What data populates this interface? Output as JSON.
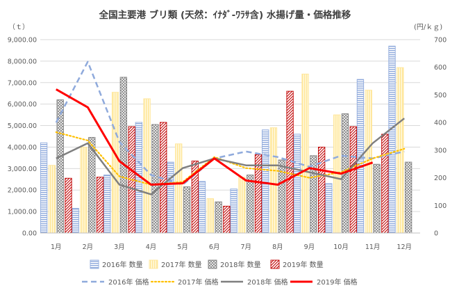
{
  "chart_data": {
    "type": "bar+line",
    "title": "全国主要港 ブリ類 (天然：ｲﾅﾀﾞ-ﾜﾗｻ含) 水揚げ量・価格推移",
    "y_left_unit": "（ｔ）",
    "y_right_unit": "(円/ｋｇ)",
    "categories": [
      "1月",
      "2月",
      "3月",
      "4月",
      "5月",
      "6月",
      "7月",
      "8月",
      "9月",
      "10月",
      "11月",
      "12月"
    ],
    "y_left": {
      "min": 0,
      "max": 9000,
      "step": 1000,
      "tick_labels": [
        "0.00",
        "1,000.00",
        "2,000.00",
        "3,000.00",
        "4,000.00",
        "5,000.00",
        "6,000.00",
        "7,000.00",
        "8,000.00",
        "9,000.00"
      ]
    },
    "y_right": {
      "min": 0,
      "max": 700,
      "step": 100,
      "tick_labels": [
        "0",
        "100",
        "200",
        "300",
        "400",
        "500",
        "600",
        "700"
      ]
    },
    "bar_series": [
      {
        "name": "2016年 数量",
        "color": "#8faadc",
        "pattern": "hlines",
        "values": [
          4200,
          1150,
          2700,
          5150,
          3300,
          2400,
          2050,
          4800,
          4600,
          2300,
          7150,
          8700
        ]
      },
      {
        "name": "2017年 数量",
        "color": "#ffe699",
        "pattern": "vlines",
        "values": [
          3150,
          4000,
          6550,
          6250,
          4150,
          1600,
          2600,
          4900,
          7400,
          5500,
          6650,
          7700
        ]
      },
      {
        "name": "2018年 数量",
        "color": "#7f7f7f",
        "pattern": "crosshatch",
        "values": [
          6200,
          4450,
          7250,
          5050,
          2150,
          1450,
          2700,
          3400,
          3600,
          5550,
          3200,
          3300
        ]
      },
      {
        "name": "2019年 数量",
        "color": "#c00000",
        "pattern": "diagonal",
        "values": [
          2550,
          2600,
          4950,
          5150,
          3350,
          1250,
          3650,
          6600,
          4000,
          4950,
          4600,
          null
        ]
      }
    ],
    "line_series": [
      {
        "name": "2016年 価格",
        "color": "#8faadc",
        "style": "dashed",
        "values": [
          400,
          620,
          330,
          210,
          175,
          270,
          295,
          275,
          240,
          280,
          270,
          295
        ]
      },
      {
        "name": "2017年 価格",
        "color": "#ffc000",
        "style": "dotted",
        "values": [
          365,
          335,
          205,
          175,
          185,
          275,
          235,
          225,
          200,
          220,
          270,
          305
        ]
      },
      {
        "name": "2018年 価格",
        "color": "#7f7f7f",
        "style": "solid",
        "values": [
          270,
          325,
          175,
          140,
          235,
          270,
          245,
          245,
          220,
          195,
          325,
          415
        ]
      },
      {
        "name": "2019年 価格",
        "color": "#ff0000",
        "style": "solid-thick",
        "values": [
          520,
          455,
          260,
          175,
          180,
          270,
          190,
          175,
          235,
          215,
          255,
          null
        ]
      }
    ]
  }
}
